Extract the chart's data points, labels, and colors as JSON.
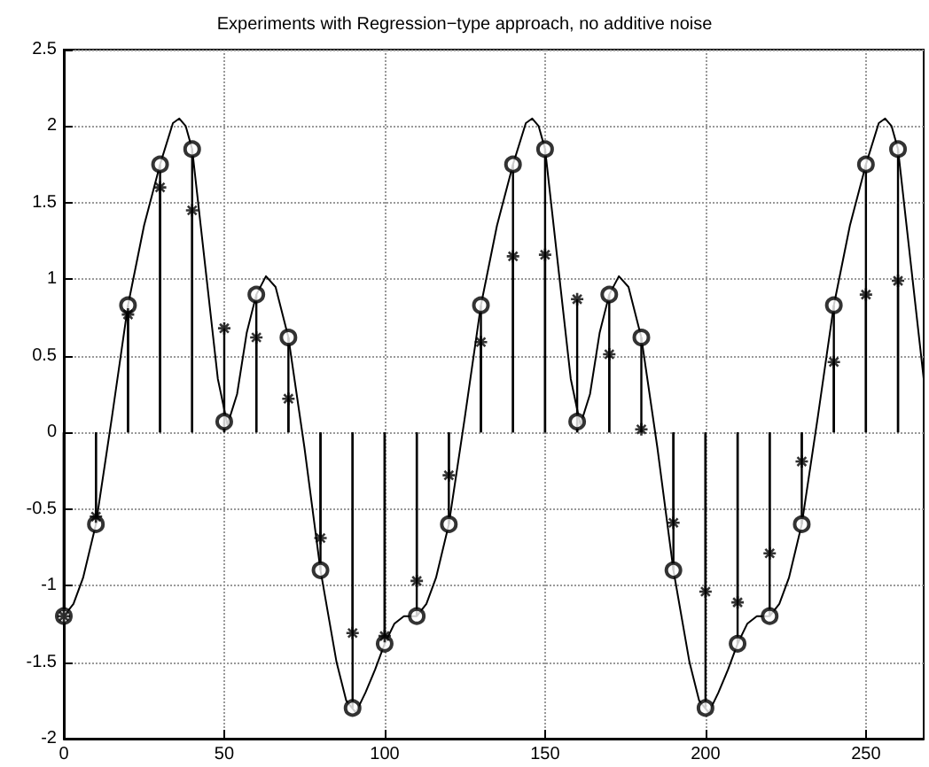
{
  "chart_data": {
    "type": "lollipop",
    "title": "Experiments with Regression−type approach, no additive noise",
    "xlim": [
      0,
      268
    ],
    "xticks": [
      0,
      50,
      100,
      150,
      200,
      250
    ],
    "ylim": [
      -2,
      2.5
    ],
    "yticks": [
      -2,
      -1.5,
      -1,
      -0.5,
      0,
      0.5,
      1,
      1.5,
      2,
      2.5
    ],
    "grid": true,
    "series": [
      {
        "type": "line",
        "color": "#000000",
        "marker": "none",
        "line_style": "solid",
        "x": [
          0,
          3,
          6,
          10,
          15,
          20,
          25,
          30,
          34,
          36,
          38,
          40,
          44,
          48,
          51,
          54,
          57,
          60,
          63,
          66,
          70,
          75,
          80,
          85,
          88,
          91,
          94,
          97,
          100,
          103,
          106,
          110,
          113,
          116,
          120,
          125,
          130,
          135,
          140,
          144,
          146,
          148,
          150,
          154,
          158,
          161,
          164,
          167,
          170,
          173,
          176,
          180,
          185,
          190,
          195,
          198,
          201,
          204,
          207,
          210,
          213,
          216,
          220,
          223,
          226,
          230,
          235,
          240,
          245,
          250,
          254,
          256,
          258,
          260,
          264,
          268
        ],
        "values": [
          -1.2,
          -1.12,
          -0.95,
          -0.6,
          0.1,
          0.83,
          1.35,
          1.75,
          2.02,
          2.05,
          2.0,
          1.85,
          1.1,
          0.35,
          0.05,
          0.25,
          0.65,
          0.9,
          1.02,
          0.95,
          0.62,
          -0.1,
          -0.9,
          -1.5,
          -1.75,
          -1.83,
          -1.7,
          -1.55,
          -1.38,
          -1.25,
          -1.2,
          -1.2,
          -1.12,
          -0.95,
          -0.6,
          0.1,
          0.83,
          1.35,
          1.75,
          2.02,
          2.05,
          2.0,
          1.85,
          1.1,
          0.35,
          0.05,
          0.25,
          0.65,
          0.9,
          1.02,
          0.95,
          0.62,
          -0.1,
          -0.9,
          -1.5,
          -1.75,
          -1.83,
          -1.7,
          -1.55,
          -1.38,
          -1.25,
          -1.2,
          -1.2,
          -1.12,
          -0.95,
          -0.6,
          0.1,
          0.83,
          1.35,
          1.75,
          2.02,
          2.05,
          2.0,
          1.85,
          1.1,
          0.35
        ]
      },
      {
        "color": "#000000",
        "marker": "circle",
        "x": [
          0,
          10,
          20,
          30,
          40,
          50,
          60,
          70,
          80,
          90,
          100,
          110,
          120,
          130,
          140,
          150,
          160,
          170,
          180,
          190,
          200,
          210,
          220,
          230,
          240,
          250,
          260
        ],
        "values": [
          -1.2,
          -0.6,
          0.83,
          1.75,
          1.85,
          0.07,
          0.9,
          0.62,
          -0.9,
          -1.8,
          -1.38,
          -1.2,
          -0.6,
          0.83,
          1.75,
          1.85,
          0.07,
          0.9,
          0.62,
          -0.9,
          -1.8,
          -1.38,
          -1.2,
          -0.6,
          0.83,
          1.75,
          1.85
        ]
      },
      {
        "color": "#000000",
        "marker": "cross",
        "x": [
          0,
          10,
          20,
          30,
          40,
          50,
          60,
          70,
          80,
          90,
          100,
          110,
          120,
          130,
          140,
          150,
          160,
          170,
          180,
          190,
          200,
          210,
          220,
          230,
          240,
          250,
          260
        ],
        "values": [
          -1.2,
          -0.55,
          0.77,
          1.6,
          1.45,
          0.68,
          0.62,
          0.22,
          -0.69,
          -1.31,
          -1.33,
          -0.97,
          -0.28,
          0.59,
          1.15,
          1.16,
          0.87,
          0.51,
          0.02,
          -0.59,
          -1.04,
          -1.11,
          -0.79,
          -0.19,
          0.46,
          0.9,
          0.99
        ]
      }
    ]
  }
}
